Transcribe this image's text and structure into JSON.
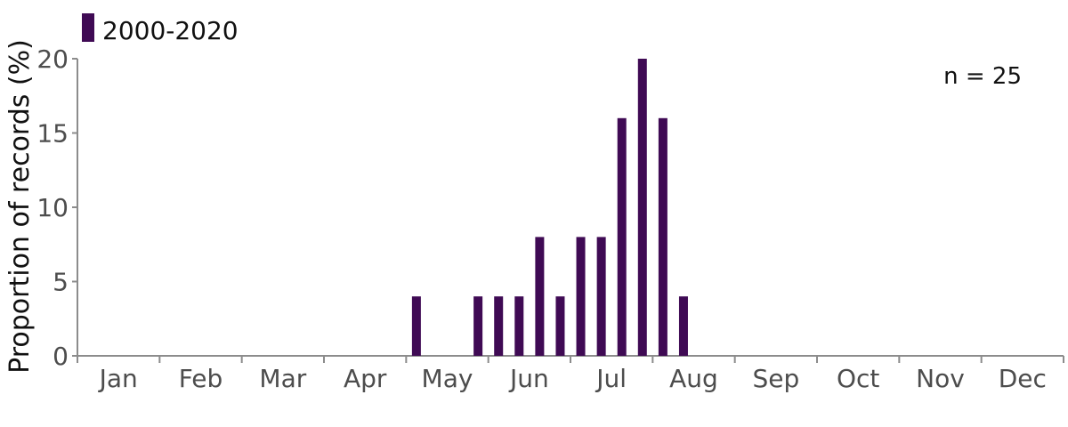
{
  "chart_data": {
    "type": "bar",
    "ylabel": "Proportion of records (%)",
    "xlabel": "",
    "ylim": [
      0,
      20
    ],
    "yticks": [
      0,
      5,
      10,
      15,
      20
    ],
    "months": [
      "Jan",
      "Feb",
      "Mar",
      "Apr",
      "May",
      "Jun",
      "Jul",
      "Aug",
      "Sep",
      "Oct",
      "Nov",
      "Dec"
    ],
    "bins_per_month": 4,
    "bar_color": "#3f0a54",
    "legend": {
      "position": "top-left"
    },
    "annotation": "n = 25",
    "series": [
      {
        "name": "2000-2020",
        "color": "#3f0a54",
        "values": [
          0,
          0,
          0,
          0,
          0,
          0,
          0,
          0,
          0,
          0,
          0,
          0,
          0,
          0,
          0,
          0,
          4,
          0,
          0,
          4,
          4,
          4,
          8,
          4,
          8,
          8,
          16,
          20,
          16,
          4,
          0,
          0,
          0,
          0,
          0,
          0,
          0,
          0,
          0,
          0,
          0,
          0,
          0,
          0,
          0,
          0,
          0,
          0
        ]
      }
    ]
  }
}
